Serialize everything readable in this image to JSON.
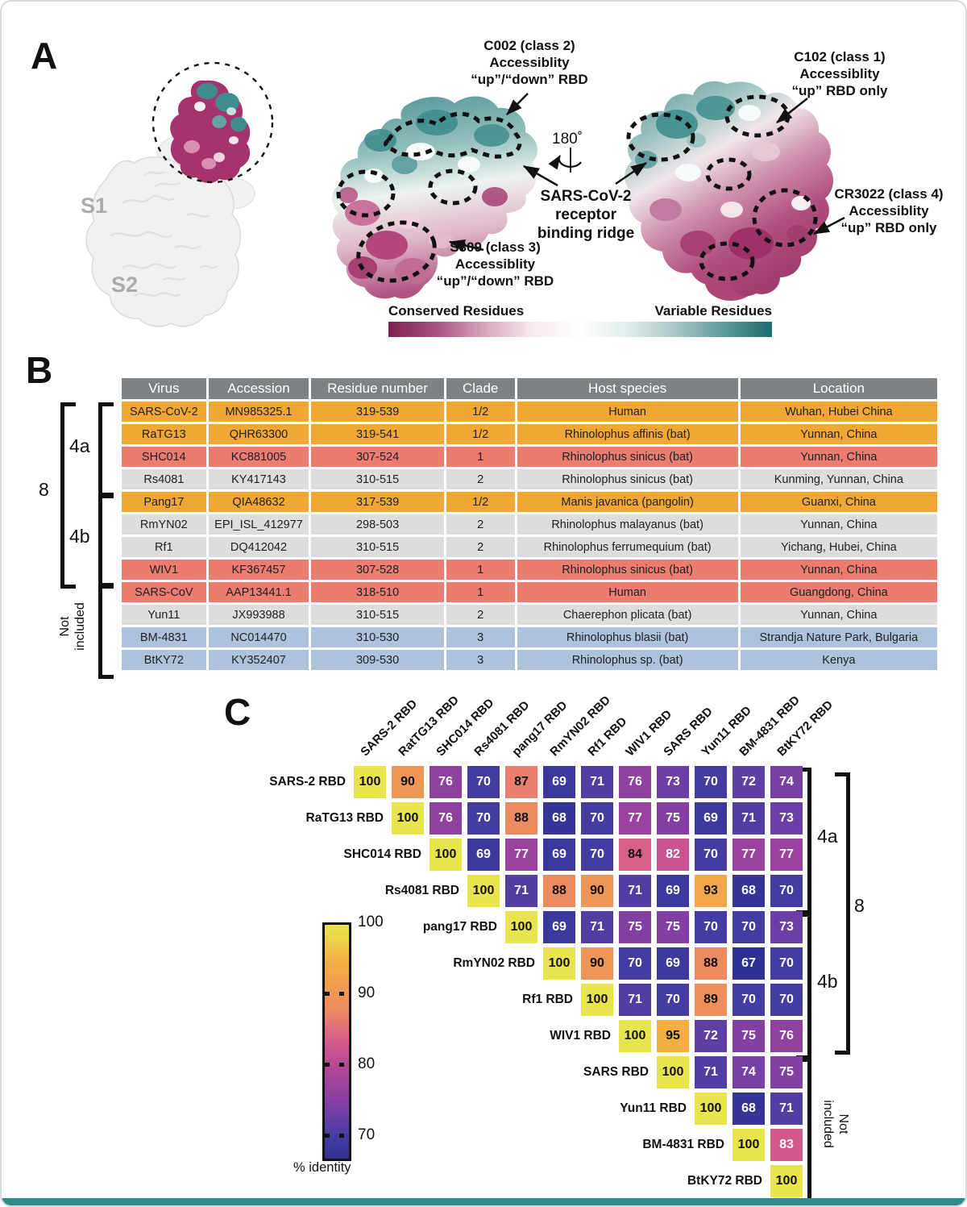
{
  "page": {
    "bottom_bar_color": "#2F8C8C"
  },
  "panelA": {
    "label": "A",
    "s1_label": "S1",
    "s2_label": "S2",
    "annotations": {
      "c002": [
        "C002 (class 2)",
        "Accessiblity",
        "“up”/“down” RBD"
      ],
      "c102": [
        "C102 (class 1)",
        "Accessiblity",
        "“up” RBD only"
      ],
      "rotation": "180˚",
      "ridge": [
        "SARS-CoV-2",
        "receptor",
        "binding ridge"
      ],
      "cr3022": [
        "CR3022 (class 4)",
        "Accessiblity",
        "“up” RBD only"
      ],
      "s309": [
        "S309 (class 3)",
        "Accessiblity",
        "“up”/“down” RBD"
      ]
    },
    "legend": {
      "left_label": "Conserved Residues",
      "right_label": "Variable Residues",
      "gradient_stops": [
        "#7E2050",
        "#A85380",
        "#D8A5BC",
        "#F7EAEF",
        "#FFFFFF",
        "#E2ECEB",
        "#A7C6C4",
        "#5E9A99",
        "#1E6A6E"
      ]
    },
    "structure_colors": {
      "teal": "#3F8D8D",
      "maroon": "#A6336B",
      "spike_gray": "#F1F1F1"
    }
  },
  "panelB": {
    "label": "B",
    "groups": {
      "outer": "8",
      "g4a": "4a",
      "g4b": "4b",
      "not_included": [
        "Not",
        "included"
      ]
    },
    "row_palette": {
      "orange": "#F0A733",
      "salmon": "#EC7B70",
      "gray": "#DBDDDE",
      "blue": "#AFC2DC",
      "header": "#7F8285"
    },
    "table": {
      "headers": [
        "Virus",
        "Accession",
        "Residue number",
        "Clade",
        "Host species",
        "Location"
      ],
      "rows": [
        {
          "virus": "SARS-CoV-2",
          "accession": "MN985325.1",
          "residue_number": "319-539",
          "clade": "1/2",
          "host_species": "Human",
          "location": "Wuhan, Hubei China",
          "color": "orange"
        },
        {
          "virus": "RaTG13",
          "accession": "QHR63300",
          "residue_number": "319-541",
          "clade": "1/2",
          "host_species": "Rhinolophus affinis (bat)",
          "location": "Yunnan, China",
          "color": "orange"
        },
        {
          "virus": "SHC014",
          "accession": "KC881005",
          "residue_number": "307-524",
          "clade": "1",
          "host_species": "Rhinolophus sinicus (bat)",
          "location": "Yunnan, China",
          "color": "salmon"
        },
        {
          "virus": "Rs4081",
          "accession": "KY417143",
          "residue_number": "310-515",
          "clade": "2",
          "host_species": "Rhinolophus sinicus (bat)",
          "location": "Kunming, Yunnan, China",
          "color": "gray"
        },
        {
          "virus": "Pang17",
          "accession": "QIA48632",
          "residue_number": "317-539",
          "clade": "1/2",
          "host_species": "Manis javanica (pangolin)",
          "location": "Guanxi, China",
          "color": "orange"
        },
        {
          "virus": "RmYN02",
          "accession": "EPI_ISL_412977",
          "residue_number": "298-503",
          "clade": "2",
          "host_species": "Rhinolophus malayanus (bat)",
          "location": "Yunnan, China",
          "color": "gray"
        },
        {
          "virus": "Rf1",
          "accession": "DQ412042",
          "residue_number": "310-515",
          "clade": "2",
          "host_species": "Rhinolophus ferrumequium (bat)",
          "location": "Yichang, Hubei, China",
          "color": "gray"
        },
        {
          "virus": "WIV1",
          "accession": "KF367457",
          "residue_number": "307-528",
          "clade": "1",
          "host_species": "Rhinolophus sinicus (bat)",
          "location": "Yunnan, China",
          "color": "salmon"
        },
        {
          "virus": "SARS-CoV",
          "accession": "AAP13441.1",
          "residue_number": "318-510",
          "clade": "1",
          "host_species": "Human",
          "location": "Guangdong, China",
          "color": "salmon"
        },
        {
          "virus": "Yun11",
          "accession": "JX993988",
          "residue_number": "310-515",
          "clade": "2",
          "host_species": "Chaerephon plicata (bat)",
          "location": "Yunnan, China",
          "color": "gray"
        },
        {
          "virus": "BM-4831",
          "accession": "NC014470",
          "residue_number": "310-530",
          "clade": "3",
          "host_species": "Rhinolophus blasii (bat)",
          "location": "Strandja Nature Park, Bulgaria",
          "color": "blue"
        },
        {
          "virus": "BtKY72",
          "accession": "KY352407",
          "residue_number": "309-530",
          "clade": "3",
          "host_species": "Rhinolophus sp. (bat)",
          "location": "Kenya",
          "color": "blue"
        }
      ]
    }
  },
  "panelC": {
    "label": "C"
  },
  "chart_data": {
    "type": "heatmap",
    "title": "",
    "col_labels": [
      "SARS-2 RBD",
      "RatTG13 RBD",
      "SHC014 RBD",
      "Rs4081 RBD",
      "pang17 RBD",
      "RmYN02 RBD",
      "Rf1 RBD",
      "WIV1 RBD",
      "SARS RBD",
      "Yun11 RBD",
      "BM-4831 RBD",
      "BtKY72 RBD"
    ],
    "row_labels": [
      "SARS-2 RBD",
      "RaTG13 RBD",
      "SHC014 RBD",
      "Rs4081 RBD",
      "pang17 RBD",
      "RmYN02 RBD",
      "Rf1 RBD",
      "WIV1 RBD",
      "SARS RBD",
      "Yun11 RBD",
      "BM-4831 RBD",
      "BtKY72 RBD"
    ],
    "values": [
      [
        100,
        90,
        76,
        70,
        87,
        69,
        71,
        76,
        73,
        70,
        72,
        74
      ],
      [
        null,
        100,
        76,
        70,
        88,
        68,
        70,
        77,
        75,
        69,
        71,
        73
      ],
      [
        null,
        null,
        100,
        69,
        77,
        69,
        70,
        84,
        82,
        70,
        77,
        77
      ],
      [
        null,
        null,
        null,
        100,
        71,
        88,
        90,
        71,
        69,
        93,
        68,
        70
      ],
      [
        null,
        null,
        null,
        null,
        100,
        69,
        71,
        75,
        75,
        70,
        70,
        73
      ],
      [
        null,
        null,
        null,
        null,
        null,
        100,
        90,
        70,
        69,
        88,
        67,
        70
      ],
      [
        null,
        null,
        null,
        null,
        null,
        null,
        100,
        71,
        70,
        89,
        70,
        70
      ],
      [
        null,
        null,
        null,
        null,
        null,
        null,
        null,
        100,
        95,
        72,
        75,
        76
      ],
      [
        null,
        null,
        null,
        null,
        null,
        null,
        null,
        null,
        100,
        71,
        74,
        75
      ],
      [
        null,
        null,
        null,
        null,
        null,
        null,
        null,
        null,
        null,
        100,
        68,
        71
      ],
      [
        null,
        null,
        null,
        null,
        null,
        null,
        null,
        null,
        null,
        null,
        100,
        83
      ],
      [
        null,
        null,
        null,
        null,
        null,
        null,
        null,
        null,
        null,
        null,
        null,
        100
      ]
    ],
    "colorbar": {
      "label": "% identity",
      "ticks": [
        100,
        90,
        80,
        70
      ],
      "min": 67,
      "max": 100
    },
    "colormap_stops": [
      [
        67,
        "#2E3192"
      ],
      [
        70,
        "#453CA2"
      ],
      [
        73,
        "#6C3FA6"
      ],
      [
        76,
        "#8F41A0"
      ],
      [
        80,
        "#B54796"
      ],
      [
        84,
        "#DA5F88"
      ],
      [
        88,
        "#EE8A62"
      ],
      [
        91,
        "#F09A50"
      ],
      [
        95,
        "#F3B042"
      ],
      [
        98,
        "#EDD34A"
      ],
      [
        100,
        "#E7E44C"
      ]
    ],
    "brackets": {
      "g4a": "4a",
      "g4b": "4b",
      "outer": "8",
      "not_included": [
        "Not",
        "included"
      ]
    }
  }
}
